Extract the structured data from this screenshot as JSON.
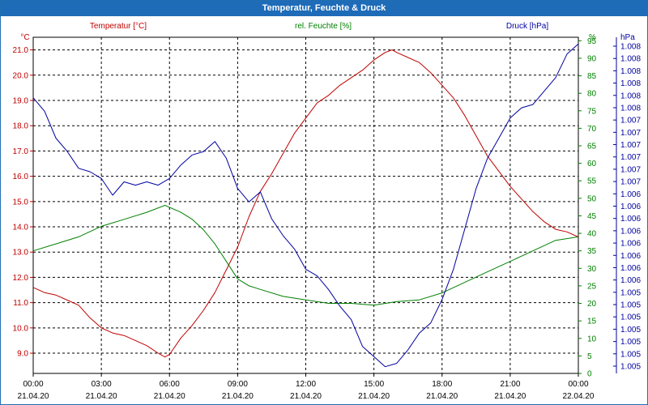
{
  "window": {
    "title": "Temperatur, Feuchte & Druck"
  },
  "colors": {
    "temperature": "#c00000",
    "humidity": "#008000",
    "pressure": "#0000a0",
    "grid": "#000000",
    "title_bar": "#1e6bb8"
  },
  "chart_data": {
    "type": "line",
    "title": "Temperatur, Feuchte & Druck",
    "grid": true,
    "x": {
      "range_hours": [
        0,
        24
      ],
      "tick_times": [
        "00:00",
        "03:00",
        "06:00",
        "09:00",
        "12:00",
        "15:00",
        "18:00",
        "21:00",
        "00:00"
      ],
      "tick_dates": [
        "21.04.20",
        "21.04.20",
        "21.04.20",
        "21.04.20",
        "21.04.20",
        "21.04.20",
        "21.04.20",
        "21.04.20",
        "22.04.20"
      ]
    },
    "axes": {
      "temperature": {
        "label": "Temperatur [°C]",
        "unit": "°C",
        "range": [
          8.2,
          21.5
        ],
        "ticks": [
          "9.0",
          "10.0",
          "11.0",
          "12.0",
          "13.0",
          "14.0",
          "15.0",
          "16.0",
          "17.0",
          "18.0",
          "19.0",
          "20.0",
          "21.0"
        ]
      },
      "humidity": {
        "label": "rel. Feuchte [%]",
        "unit": "%",
        "range": [
          0,
          96
        ],
        "ticks": [
          "0",
          "5",
          "10",
          "15",
          "20",
          "25",
          "30",
          "35",
          "40",
          "45",
          "50",
          "55",
          "60",
          "65",
          "70",
          "75",
          "80",
          "85",
          "90",
          "95"
        ]
      },
      "pressure": {
        "label": "Druck [hPa]",
        "unit": "hPa",
        "range": [
          0,
          1
        ],
        "ticks": [
          "1.005",
          "1.005",
          "1.005",
          "1.005",
          "1.005",
          "1.005",
          "1.005",
          "1.006",
          "1.006",
          "1.006",
          "1.006",
          "1.006",
          "1.006",
          "1.006",
          "1.006",
          "1.007",
          "1.007",
          "1.007",
          "1.007",
          "1.007",
          "1.007",
          "1.008",
          "1.008",
          "1.008",
          "1.008",
          "1.008",
          "1.008"
        ]
      }
    },
    "series": [
      {
        "name": "Temperatur [°C]",
        "axis": "temperature",
        "color": "#c00000",
        "points": [
          [
            0,
            11.6
          ],
          [
            0.5,
            11.4
          ],
          [
            1,
            11.3
          ],
          [
            1.5,
            11.1
          ],
          [
            2,
            10.9
          ],
          [
            2.5,
            10.4
          ],
          [
            3,
            10.0
          ],
          [
            3.5,
            9.8
          ],
          [
            4,
            9.7
          ],
          [
            4.5,
            9.5
          ],
          [
            5,
            9.3
          ],
          [
            5.5,
            9.0
          ],
          [
            5.8,
            8.85
          ],
          [
            6,
            8.95
          ],
          [
            6.5,
            9.6
          ],
          [
            7,
            10.1
          ],
          [
            7.5,
            10.7
          ],
          [
            8,
            11.4
          ],
          [
            8.5,
            12.3
          ],
          [
            9,
            13.2
          ],
          [
            9.5,
            14.4
          ],
          [
            10,
            15.4
          ],
          [
            10.5,
            16.1
          ],
          [
            11,
            16.9
          ],
          [
            11.5,
            17.7
          ],
          [
            12,
            18.3
          ],
          [
            12.5,
            18.9
          ],
          [
            13,
            19.2
          ],
          [
            13.5,
            19.6
          ],
          [
            14,
            19.9
          ],
          [
            14.5,
            20.2
          ],
          [
            15,
            20.6
          ],
          [
            15.5,
            20.9
          ],
          [
            15.8,
            21.0
          ],
          [
            16,
            20.9
          ],
          [
            16.5,
            20.7
          ],
          [
            17,
            20.5
          ],
          [
            17.5,
            20.1
          ],
          [
            18,
            19.6
          ],
          [
            18.5,
            19.1
          ],
          [
            19,
            18.4
          ],
          [
            19.5,
            17.6
          ],
          [
            20,
            16.8
          ],
          [
            20.5,
            16.2
          ],
          [
            21,
            15.6
          ],
          [
            21.5,
            15.1
          ],
          [
            22,
            14.6
          ],
          [
            22.5,
            14.2
          ],
          [
            23,
            13.9
          ],
          [
            23.5,
            13.8
          ],
          [
            24,
            13.6
          ]
        ]
      },
      {
        "name": "rel. Feuchte [%]",
        "axis": "humidity",
        "color": "#008000",
        "points": [
          [
            0,
            35
          ],
          [
            1,
            37
          ],
          [
            2,
            39
          ],
          [
            3,
            42
          ],
          [
            4,
            44
          ],
          [
            5,
            46
          ],
          [
            5.8,
            48
          ],
          [
            6.5,
            46
          ],
          [
            7,
            44
          ],
          [
            7.5,
            41
          ],
          [
            8,
            37
          ],
          [
            8.5,
            32
          ],
          [
            9,
            27
          ],
          [
            9.5,
            25
          ],
          [
            10,
            24
          ],
          [
            11,
            22
          ],
          [
            12,
            21
          ],
          [
            13,
            20
          ],
          [
            14,
            20
          ],
          [
            15,
            19.5
          ],
          [
            16,
            20.5
          ],
          [
            17,
            21
          ],
          [
            18,
            23
          ],
          [
            19,
            26
          ],
          [
            20,
            29
          ],
          [
            21,
            32
          ],
          [
            22,
            35
          ],
          [
            23,
            38
          ],
          [
            24,
            39
          ]
        ]
      },
      {
        "name": "Druck [hPa]",
        "axis": "pressure",
        "color": "#0000a0",
        "points": [
          [
            0,
            0.82
          ],
          [
            0.5,
            0.78
          ],
          [
            1,
            0.7
          ],
          [
            1.5,
            0.66
          ],
          [
            2,
            0.61
          ],
          [
            2.5,
            0.6
          ],
          [
            3,
            0.58
          ],
          [
            3.5,
            0.53
          ],
          [
            4,
            0.57
          ],
          [
            4.5,
            0.56
          ],
          [
            5,
            0.57
          ],
          [
            5.5,
            0.56
          ],
          [
            6,
            0.58
          ],
          [
            6.5,
            0.62
          ],
          [
            7,
            0.65
          ],
          [
            7.5,
            0.66
          ],
          [
            8,
            0.69
          ],
          [
            8.5,
            0.64
          ],
          [
            9,
            0.55
          ],
          [
            9.5,
            0.51
          ],
          [
            10,
            0.54
          ],
          [
            10.5,
            0.46
          ],
          [
            11,
            0.41
          ],
          [
            11.5,
            0.37
          ],
          [
            12,
            0.31
          ],
          [
            12.5,
            0.29
          ],
          [
            13,
            0.25
          ],
          [
            13.5,
            0.2
          ],
          [
            14,
            0.16
          ],
          [
            14.5,
            0.08
          ],
          [
            15,
            0.05
          ],
          [
            15.5,
            0.02
          ],
          [
            16,
            0.03
          ],
          [
            16.5,
            0.07
          ],
          [
            17,
            0.12
          ],
          [
            17.5,
            0.15
          ],
          [
            18,
            0.22
          ],
          [
            18.5,
            0.31
          ],
          [
            19,
            0.43
          ],
          [
            19.5,
            0.55
          ],
          [
            20,
            0.64
          ],
          [
            20.5,
            0.7
          ],
          [
            21,
            0.76
          ],
          [
            21.5,
            0.79
          ],
          [
            22,
            0.8
          ],
          [
            22.5,
            0.84
          ],
          [
            23,
            0.88
          ],
          [
            23.5,
            0.95
          ],
          [
            24,
            0.98
          ]
        ]
      }
    ]
  }
}
